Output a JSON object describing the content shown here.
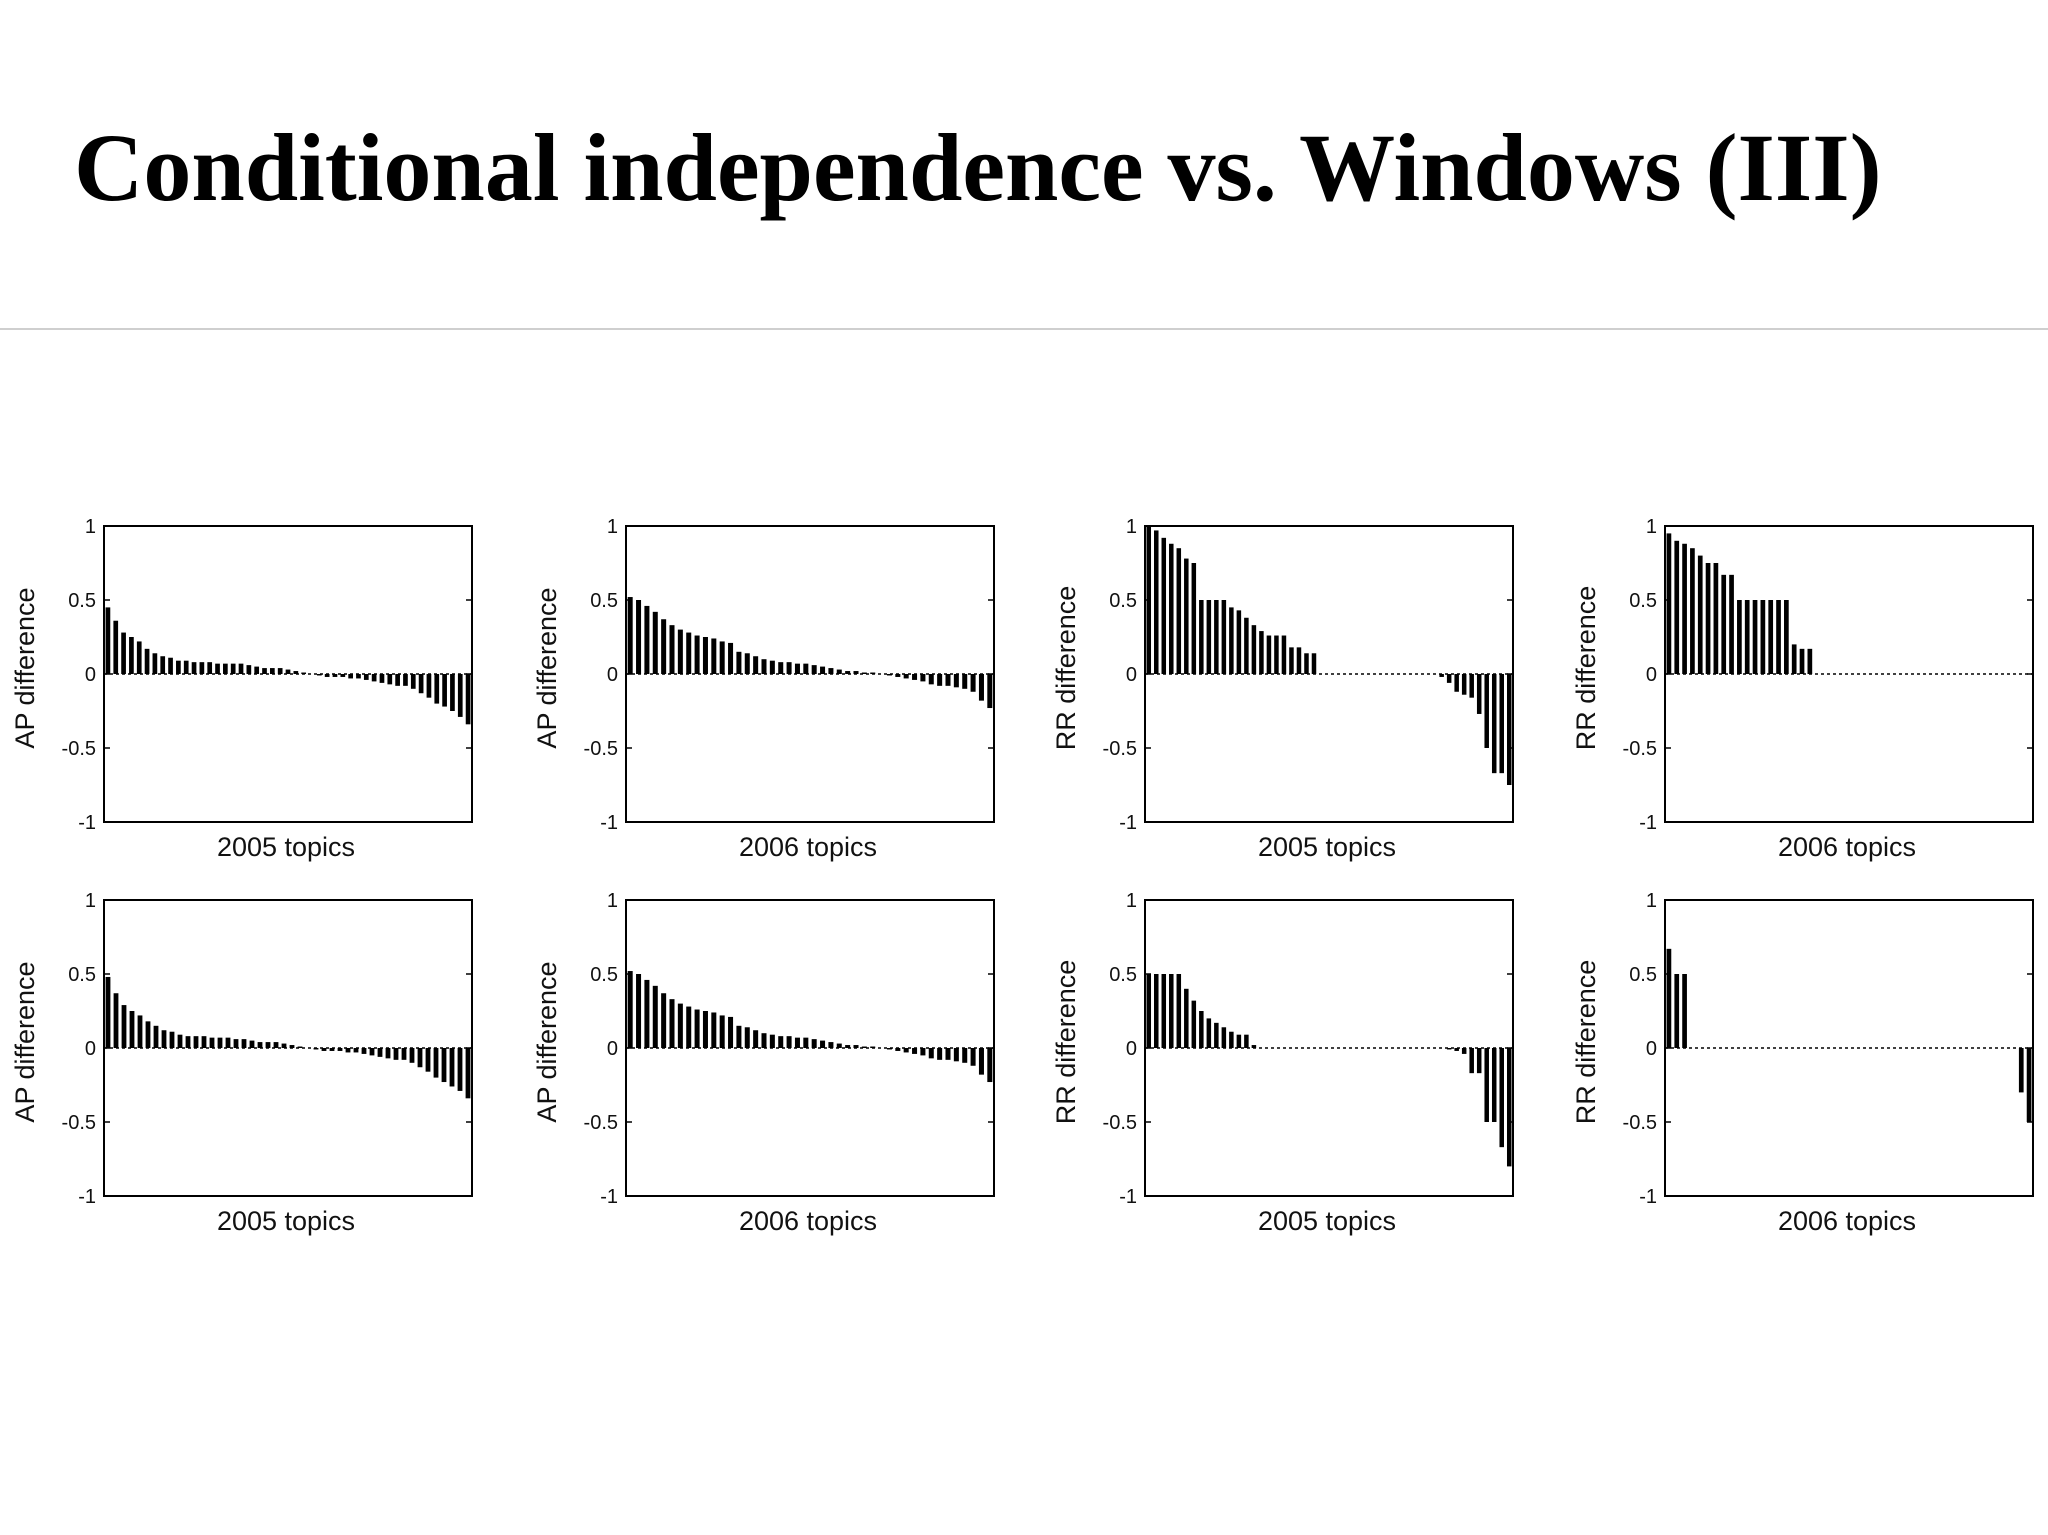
{
  "slide": {
    "title": "Conditional independence vs. Windows (III)"
  },
  "chart_data": [
    {
      "type": "bar",
      "ylabel": "AP difference",
      "xlabel": "2005 topics",
      "ylim": [
        -1,
        1
      ],
      "yticks": [
        "1",
        "0.5",
        "0",
        "-0.5",
        "-1"
      ],
      "values": [
        0.45,
        0.36,
        0.28,
        0.25,
        0.22,
        0.17,
        0.14,
        0.12,
        0.11,
        0.09,
        0.09,
        0.08,
        0.08,
        0.08,
        0.07,
        0.07,
        0.07,
        0.07,
        0.06,
        0.05,
        0.04,
        0.04,
        0.04,
        0.03,
        0.02,
        0.01,
        0.0,
        -0.01,
        -0.02,
        -0.02,
        -0.02,
        -0.03,
        -0.03,
        -0.04,
        -0.05,
        -0.06,
        -0.07,
        -0.08,
        -0.08,
        -0.1,
        -0.13,
        -0.16,
        -0.2,
        -0.22,
        -0.25,
        -0.29,
        -0.34
      ]
    },
    {
      "type": "bar",
      "ylabel": "AP difference",
      "xlabel": "2006 topics",
      "ylim": [
        -1,
        1
      ],
      "yticks": [
        "1",
        "0.5",
        "0",
        "-0.5",
        "-1"
      ],
      "values": [
        0.52,
        0.5,
        0.46,
        0.42,
        0.37,
        0.33,
        0.3,
        0.28,
        0.26,
        0.25,
        0.24,
        0.22,
        0.21,
        0.15,
        0.14,
        0.12,
        0.1,
        0.09,
        0.08,
        0.08,
        0.07,
        0.07,
        0.06,
        0.05,
        0.04,
        0.03,
        0.02,
        0.02,
        0.01,
        0.01,
        0.0,
        -0.01,
        -0.02,
        -0.03,
        -0.04,
        -0.05,
        -0.07,
        -0.08,
        -0.08,
        -0.09,
        -0.1,
        -0.12,
        -0.18,
        -0.23
      ]
    },
    {
      "type": "bar",
      "ylabel": "RR difference",
      "xlabel": "2005 topics",
      "ylim": [
        -1,
        1
      ],
      "yticks": [
        "1",
        "0.5",
        "0",
        "-0.5",
        "-1"
      ],
      "values": [
        1.0,
        0.97,
        0.92,
        0.88,
        0.85,
        0.78,
        0.75,
        0.5,
        0.5,
        0.5,
        0.5,
        0.45,
        0.43,
        0.38,
        0.33,
        0.29,
        0.26,
        0.26,
        0.26,
        0.18,
        0.18,
        0.14,
        0.14,
        0.0,
        0.0,
        0.0,
        0.0,
        0.0,
        0.0,
        0.0,
        0.0,
        0.0,
        0.0,
        0.0,
        0.0,
        0.0,
        0.0,
        0.0,
        0.0,
        -0.02,
        -0.06,
        -0.12,
        -0.14,
        -0.16,
        -0.27,
        -0.5,
        -0.67,
        -0.67,
        -0.75
      ]
    },
    {
      "type": "bar",
      "ylabel": "RR difference",
      "xlabel": "2006 topics",
      "ylim": [
        -1,
        1
      ],
      "yticks": [
        "1",
        "0.5",
        "0",
        "-0.5",
        "-1"
      ],
      "values": [
        0.95,
        0.9,
        0.88,
        0.85,
        0.8,
        0.75,
        0.75,
        0.67,
        0.67,
        0.5,
        0.5,
        0.5,
        0.5,
        0.5,
        0.5,
        0.5,
        0.2,
        0.17,
        0.17,
        0.0,
        0.0,
        0.0,
        0.0,
        0.0,
        0.0,
        0.0,
        0.0,
        0.0,
        0.0,
        0.0,
        0.0,
        0.0,
        0.0,
        0.0,
        0.0,
        0.0,
        0.0,
        0.0,
        0.0,
        0.0,
        0.0,
        0.0,
        0.0,
        0.0,
        0.0,
        0.0,
        0.0
      ]
    },
    {
      "type": "bar",
      "ylabel": "AP difference",
      "xlabel": "2005 topics",
      "ylim": [
        -1,
        1
      ],
      "yticks": [
        "1",
        "0.5",
        "0",
        "-0.5",
        "-1"
      ],
      "values": [
        0.48,
        0.37,
        0.29,
        0.25,
        0.22,
        0.18,
        0.15,
        0.12,
        0.11,
        0.09,
        0.08,
        0.08,
        0.08,
        0.07,
        0.07,
        0.07,
        0.06,
        0.06,
        0.05,
        0.04,
        0.04,
        0.04,
        0.03,
        0.02,
        0.01,
        0.0,
        -0.01,
        -0.02,
        -0.02,
        -0.02,
        -0.03,
        -0.03,
        -0.04,
        -0.05,
        -0.06,
        -0.07,
        -0.08,
        -0.08,
        -0.1,
        -0.13,
        -0.16,
        -0.2,
        -0.23,
        -0.26,
        -0.29,
        -0.34
      ]
    },
    {
      "type": "bar",
      "ylabel": "AP difference",
      "xlabel": "2006 topics",
      "ylim": [
        -1,
        1
      ],
      "yticks": [
        "1",
        "0.5",
        "0",
        "-0.5",
        "-1"
      ],
      "values": [
        0.52,
        0.5,
        0.46,
        0.42,
        0.37,
        0.33,
        0.3,
        0.28,
        0.26,
        0.25,
        0.24,
        0.22,
        0.21,
        0.15,
        0.14,
        0.12,
        0.1,
        0.09,
        0.08,
        0.08,
        0.07,
        0.07,
        0.06,
        0.05,
        0.04,
        0.03,
        0.02,
        0.02,
        0.01,
        0.01,
        0.0,
        -0.01,
        -0.02,
        -0.03,
        -0.04,
        -0.05,
        -0.07,
        -0.08,
        -0.08,
        -0.09,
        -0.1,
        -0.12,
        -0.18,
        -0.23
      ]
    },
    {
      "type": "bar",
      "ylabel": "RR difference",
      "xlabel": "2005 topics",
      "ylim": [
        -1,
        1
      ],
      "yticks": [
        "1",
        "0.5",
        "0",
        "-0.5",
        "-1"
      ],
      "values": [
        0.5,
        0.5,
        0.5,
        0.5,
        0.5,
        0.4,
        0.32,
        0.25,
        0.2,
        0.17,
        0.14,
        0.11,
        0.09,
        0.09,
        0.02,
        0.0,
        0.0,
        0.0,
        0.0,
        0.0,
        0.0,
        0.0,
        0.0,
        0.0,
        0.0,
        0.0,
        0.0,
        0.0,
        0.0,
        0.0,
        0.0,
        0.0,
        0.0,
        0.0,
        0.0,
        0.0,
        0.0,
        0.0,
        0.0,
        0.0,
        -0.01,
        -0.02,
        -0.04,
        -0.17,
        -0.17,
        -0.5,
        -0.5,
        -0.67,
        -0.8
      ]
    },
    {
      "type": "bar",
      "ylabel": "RR difference",
      "xlabel": "2006 topics",
      "ylim": [
        -1,
        1
      ],
      "yticks": [
        "1",
        "0.5",
        "0",
        "-0.5",
        "-1"
      ],
      "values": [
        0.67,
        0.5,
        0.5,
        0.0,
        0.0,
        0.0,
        0.0,
        0.0,
        0.0,
        0.0,
        0.0,
        0.0,
        0.0,
        0.0,
        0.0,
        0.0,
        0.0,
        0.0,
        0.0,
        0.0,
        0.0,
        0.0,
        0.0,
        0.0,
        0.0,
        0.0,
        0.0,
        0.0,
        0.0,
        0.0,
        0.0,
        0.0,
        0.0,
        0.0,
        0.0,
        0.0,
        0.0,
        0.0,
        0.0,
        0.0,
        0.0,
        0.0,
        0.0,
        0.0,
        0.0,
        -0.3,
        -0.5
      ]
    }
  ]
}
